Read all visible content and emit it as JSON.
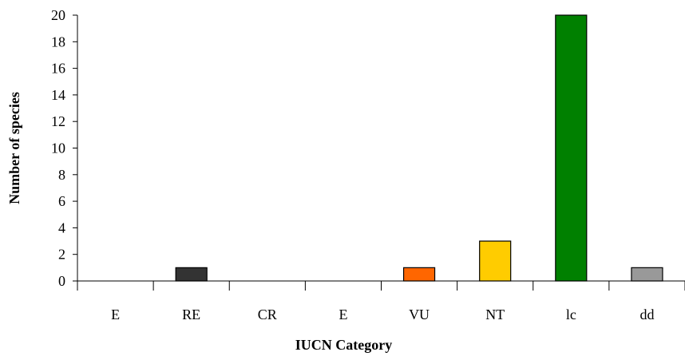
{
  "chart_data": {
    "type": "bar",
    "categories": [
      "E",
      "RE",
      "CR",
      "E",
      "VU",
      "NT",
      "lc",
      "dd"
    ],
    "values": [
      0,
      1,
      0,
      0,
      1,
      3,
      20,
      1
    ],
    "colors": [
      "#ffffff",
      "#333333",
      "#ffffff",
      "#ffffff",
      "#ff6600",
      "#ffcc00",
      "#008000",
      "#999999"
    ],
    "xlabel": "IUCN Category",
    "ylabel": "Number of species",
    "ylim": [
      0,
      20
    ],
    "yticks": [
      0,
      2,
      4,
      6,
      8,
      10,
      12,
      14,
      16,
      18,
      20
    ],
    "grid": false,
    "legend": "none"
  }
}
